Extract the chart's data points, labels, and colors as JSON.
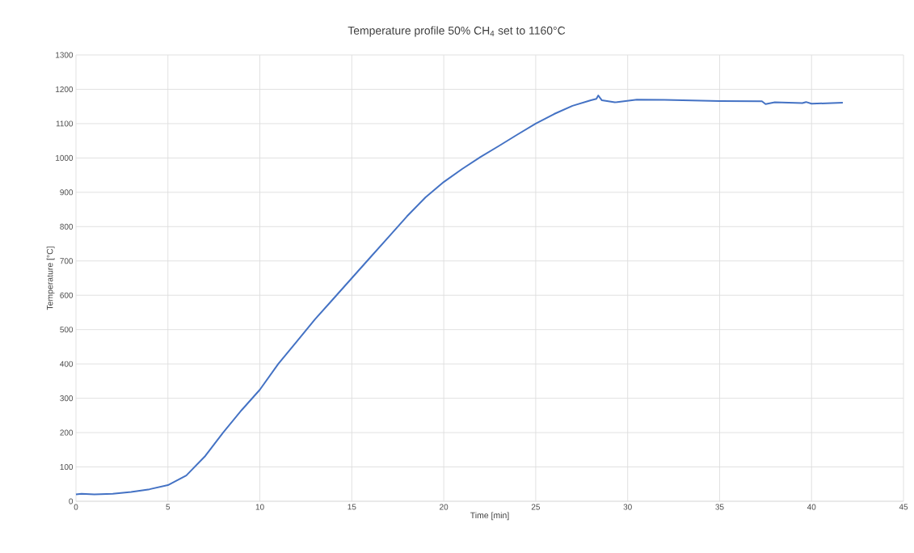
{
  "chart_data": {
    "type": "line",
    "title": "Temperature profile 50% CH$_{4}$ set to 1160°C",
    "xlabel": "Time [min]",
    "ylabel": "Temperature [°C]",
    "xlim": [
      0,
      45
    ],
    "xticks": [
      0,
      5,
      10,
      15,
      20,
      25,
      30,
      35,
      40,
      45
    ],
    "ylim": [
      0,
      1300
    ],
    "yticks": [
      0,
      100,
      200,
      300,
      400,
      500,
      600,
      700,
      800,
      900,
      1000,
      1100,
      1200,
      1300
    ],
    "grid": true,
    "marker": "none",
    "line_style": "solid",
    "series": [
      {
        "color": "#4472c4",
        "x": [
          0,
          0.3,
          1,
          2,
          3,
          4,
          5,
          6,
          7,
          8,
          9,
          10,
          11,
          12,
          13,
          14,
          15,
          16,
          17,
          18,
          19,
          20,
          21,
          22,
          23,
          24,
          25,
          26,
          27,
          28,
          28.3,
          28.4,
          28.6,
          29.3,
          30.5,
          32,
          35,
          37.3,
          37.5,
          38,
          39.5,
          39.7,
          40,
          41.7
        ],
        "values": [
          20,
          22,
          20,
          22,
          27,
          35,
          47,
          75,
          130,
          200,
          265,
          325,
          400,
          465,
          530,
          590,
          650,
          710,
          770,
          830,
          885,
          930,
          968,
          1003,
          1035,
          1068,
          1100,
          1128,
          1152,
          1168,
          1172,
          1182,
          1168,
          1162,
          1170,
          1169,
          1166,
          1165,
          1157,
          1162,
          1160,
          1163,
          1158,
          1161
        ]
      }
    ]
  }
}
